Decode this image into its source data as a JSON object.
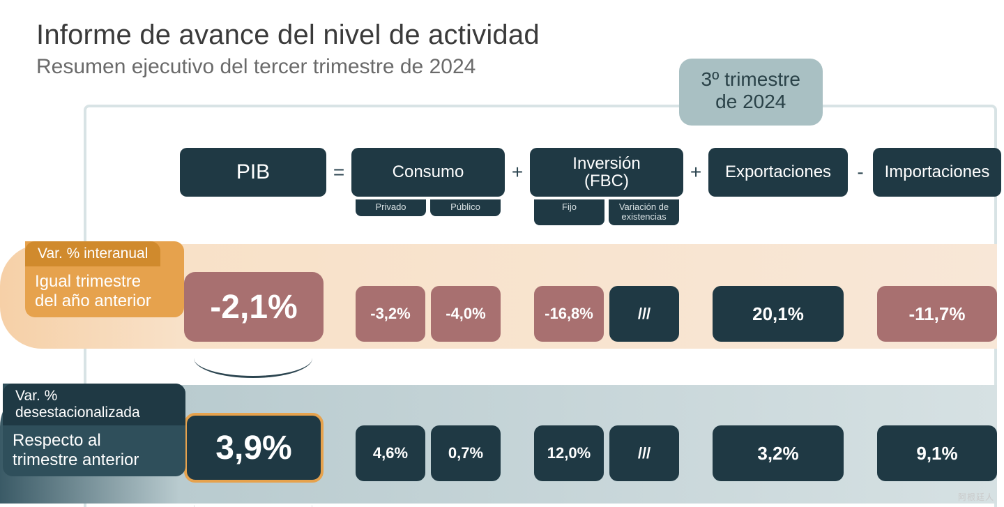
{
  "title": "Informe de avance del nivel de actividad",
  "subtitle": "Resumen ejecutivo del tercer trimestre de 2024",
  "quarter_badge": {
    "line1": "3º trimestre",
    "line2": "de 2024"
  },
  "colors": {
    "header_bg": "#1f3944",
    "neg_bg": "#a87070",
    "pos_bg": "#1f3944",
    "row1_tag": "#d08a2d",
    "row1_wrap": "#e6a24d",
    "row2_tag": "#1f3944",
    "row2_wrap": "#2f4f5b",
    "frame": "#d8e3e5",
    "badge_bg": "#a9c0c3",
    "badge_fg": "#2a4248"
  },
  "typography": {
    "title_size_pt": 40,
    "subtitle_size_pt": 30,
    "header_size_pt": 24,
    "pib_value_size_pt": 48,
    "cell_value_size_pt": 24
  },
  "operators": {
    "eq": "=",
    "plus": "+",
    "minus": "-"
  },
  "columns": {
    "pib": {
      "label": "PIB"
    },
    "consumo": {
      "label": "Consumo",
      "sub": [
        "Privado",
        "Público"
      ]
    },
    "inversion": {
      "label_l1": "Inversión",
      "label_l2": "(FBC)",
      "sub": [
        "Fijo",
        "Variación de existencias"
      ]
    },
    "export": {
      "label": "Exportaciones"
    },
    "import": {
      "label": "Importaciones"
    }
  },
  "rows": {
    "r1": {
      "tag": "Var. % interanual",
      "sub_l1": "Igual trimestre",
      "sub_l2": "del año anterior",
      "pib": "-2,1%",
      "consumo": [
        "-3,2%",
        "-4,0%"
      ],
      "inversion": [
        "-16,8%",
        "///"
      ],
      "export": "20,1%",
      "import": "-11,7%",
      "signs": {
        "pib": "neg",
        "consumo": [
          "neg",
          "neg"
        ],
        "inversion": [
          "neg",
          "pos"
        ],
        "export": "pos",
        "import": "neg"
      }
    },
    "r2": {
      "tag": "Var. % desestacionalizada",
      "sub_l1": "Respecto al",
      "sub_l2": "trimestre anterior",
      "pib": "3,9%",
      "consumo": [
        "4,6%",
        "0,7%"
      ],
      "inversion": [
        "12,0%",
        "///"
      ],
      "export": "3,2%",
      "import": "9,1%",
      "signs": {
        "pib": "pos",
        "consumo": [
          "pos",
          "pos"
        ],
        "inversion": [
          "pos",
          "pos"
        ],
        "export": "pos",
        "import": "pos"
      }
    }
  },
  "watermark": "阿根廷人"
}
